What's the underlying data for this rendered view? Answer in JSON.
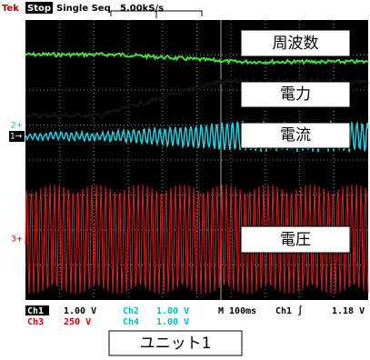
{
  "header": {
    "brand": "Tek",
    "status": "Stop",
    "mode": "Single Seq",
    "rate": "5.00kS/s"
  },
  "markers": {
    "ch2": "2+",
    "ch1": "1→",
    "ch3": "3+"
  },
  "labels": [
    "周波数",
    "電力",
    "電流",
    "電圧"
  ],
  "readout": {
    "ch1": "Ch1",
    "ch1_scale": "1.00 V",
    "ch2": "Ch2",
    "ch2_scale": "1.00 V",
    "timebase": "M 100ms",
    "trigger": "Ch1 ∫",
    "trig_level": "1.18 V",
    "ch3": "Ch3",
    "ch3_scale": "250 V",
    "ch4": "Ch4",
    "ch4_scale": "1.00 V"
  },
  "caption": "ユニット1"
}
